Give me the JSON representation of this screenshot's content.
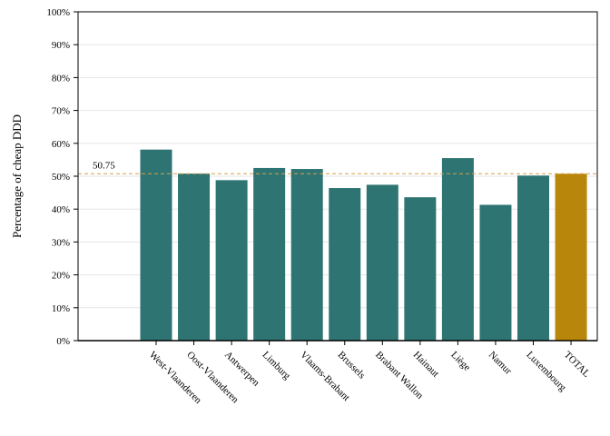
{
  "colors": {
    "bar": "#2e7472",
    "bar_highlight": "#b8860b",
    "reference_line": "#d4a24c",
    "grid": "#e6e6e6",
    "axis": "#000000"
  },
  "chart_data": {
    "type": "bar",
    "title": "",
    "xlabel": "",
    "ylabel": "Percentage of cheap DDD",
    "ylim": [
      0,
      100
    ],
    "y_ticks": [
      "0%",
      "10%",
      "20%",
      "30%",
      "40%",
      "50%",
      "60%",
      "70%",
      "80%",
      "90%",
      "100%"
    ],
    "grid": true,
    "categories": [
      "West-Vlaanderen",
      "Oost-Vlaanderen",
      "Antwerpen",
      "Limburg",
      "Vlaams-Brabant",
      "Brussels",
      "Brabant Wallon",
      "Hainaut",
      "Liège",
      "Namur",
      "Luxembourg",
      "TOTAL"
    ],
    "values": [
      58.1,
      50.8,
      48.8,
      52.5,
      52.2,
      46.4,
      47.4,
      43.6,
      55.5,
      41.3,
      50.2,
      50.75
    ],
    "highlight": "TOTAL",
    "reference": {
      "value": 50.75,
      "label": "50.75"
    }
  }
}
